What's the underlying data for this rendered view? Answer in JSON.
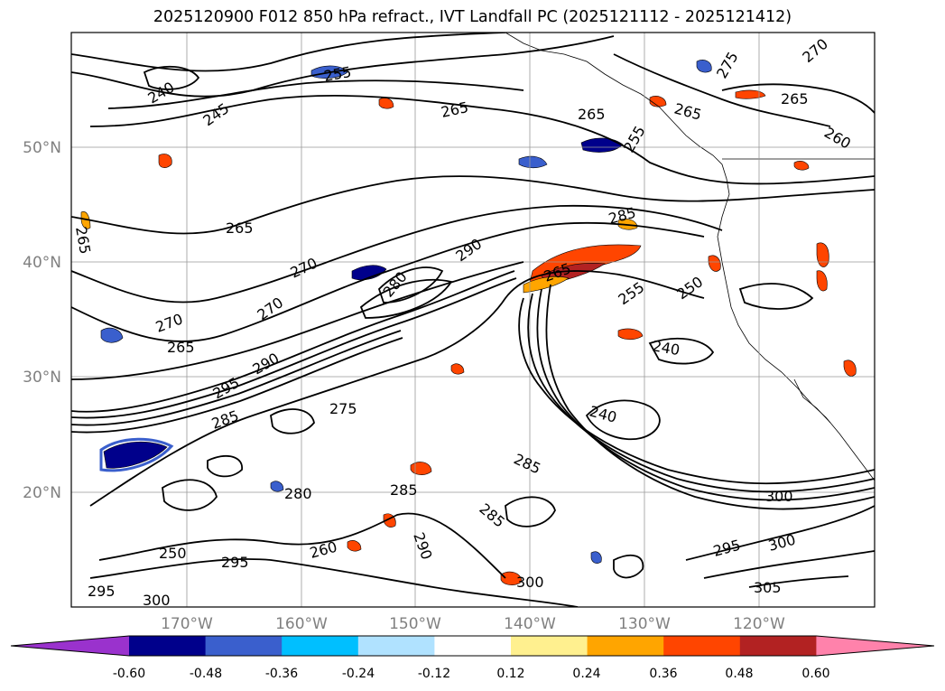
{
  "title": "2025120900 F012 850 hPa refract., IVT Landfall PC (2025121112 - 2025121412)",
  "map": {
    "lon_range": [
      -180,
      -110
    ],
    "lat_range": [
      10,
      60
    ],
    "lat_labels": [
      "20°N",
      "30°N",
      "40°N",
      "50°N"
    ],
    "lon_labels": [
      "170°W",
      "160°W",
      "150°W",
      "140°W",
      "130°W",
      "120°W"
    ],
    "contour_labels": [
      "240",
      "245",
      "250",
      "255",
      "260",
      "265",
      "270",
      "275",
      "280",
      "285",
      "290",
      "295",
      "300",
      "305"
    ]
  },
  "colorbar": {
    "colors": [
      "#9a32cd",
      "#00008b",
      "#3a5fcd",
      "#00bfff",
      "#b0e2ff",
      "#ffffff",
      "#fff08f",
      "#ffa500",
      "#ff4500",
      "#b22222",
      "#ff82ab"
    ],
    "extend": "both",
    "tick_labels": [
      "-0.60",
      "-0.48",
      "-0.36",
      "-0.24",
      "-0.12",
      "0.12",
      "0.24",
      "0.36",
      "0.48",
      "0.60"
    ]
  }
}
